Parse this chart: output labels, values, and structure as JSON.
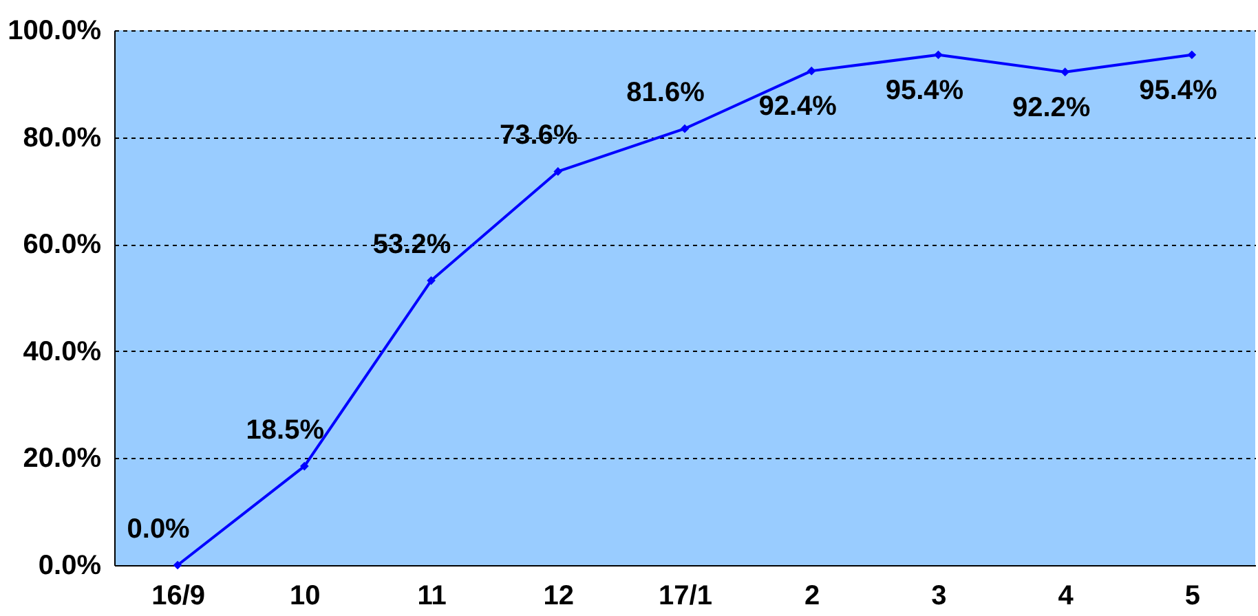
{
  "chart_data": {
    "type": "line",
    "categories": [
      "16/9",
      "10",
      "11",
      "12",
      "17/1",
      "2",
      "3",
      "4",
      "5"
    ],
    "series": [
      {
        "color": "#0000ff",
        "values": [
          0.0,
          18.5,
          53.2,
          73.6,
          81.6,
          92.4,
          95.4,
          92.2,
          95.4
        ]
      }
    ],
    "value_labels": [
      "0.0%",
      "18.5%",
      "53.2%",
      "73.6%",
      "81.6%",
      "92.4%",
      "95.4%",
      "92.2%",
      "95.4%"
    ],
    "ylim": [
      0,
      100
    ],
    "yticks": [
      {
        "value": 0,
        "label": "0.0%"
      },
      {
        "value": 20,
        "label": "20.0%"
      },
      {
        "value": 40,
        "label": "40.0%"
      },
      {
        "value": 60,
        "label": "60.0%"
      },
      {
        "value": 80,
        "label": "80.0%"
      },
      {
        "value": 100,
        "label": "100.0%"
      }
    ],
    "grid": "y",
    "marker": "diamond",
    "line_style": "solid"
  }
}
